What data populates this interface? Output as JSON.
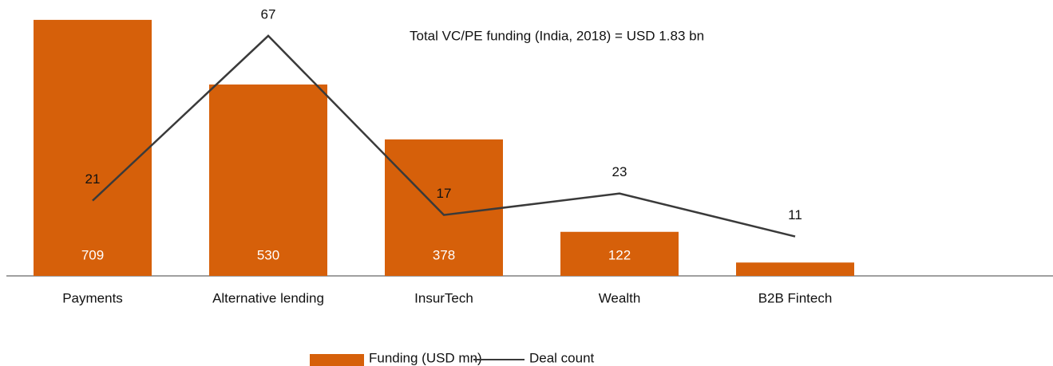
{
  "chart_data": {
    "type": "bar-line",
    "annotation": "Total VC/PE funding (India, 2018) = USD 1.83 bn",
    "categories": [
      "Payments",
      "Alternative lending",
      "InsurTech",
      "Wealth",
      "B2B Fintech"
    ],
    "series": [
      {
        "name": "Funding (USD mn)",
        "type": "bar",
        "color": "#d6600a",
        "values": [
          709,
          530,
          378,
          122,
          37
        ]
      },
      {
        "name": "Deal count",
        "type": "line",
        "axis": "y2",
        "color": "#3a3a3a",
        "values": [
          21,
          67,
          17,
          23,
          11
        ]
      }
    ],
    "ylim": [
      0,
      764
    ],
    "y2lim": [
      0,
      77
    ]
  }
}
